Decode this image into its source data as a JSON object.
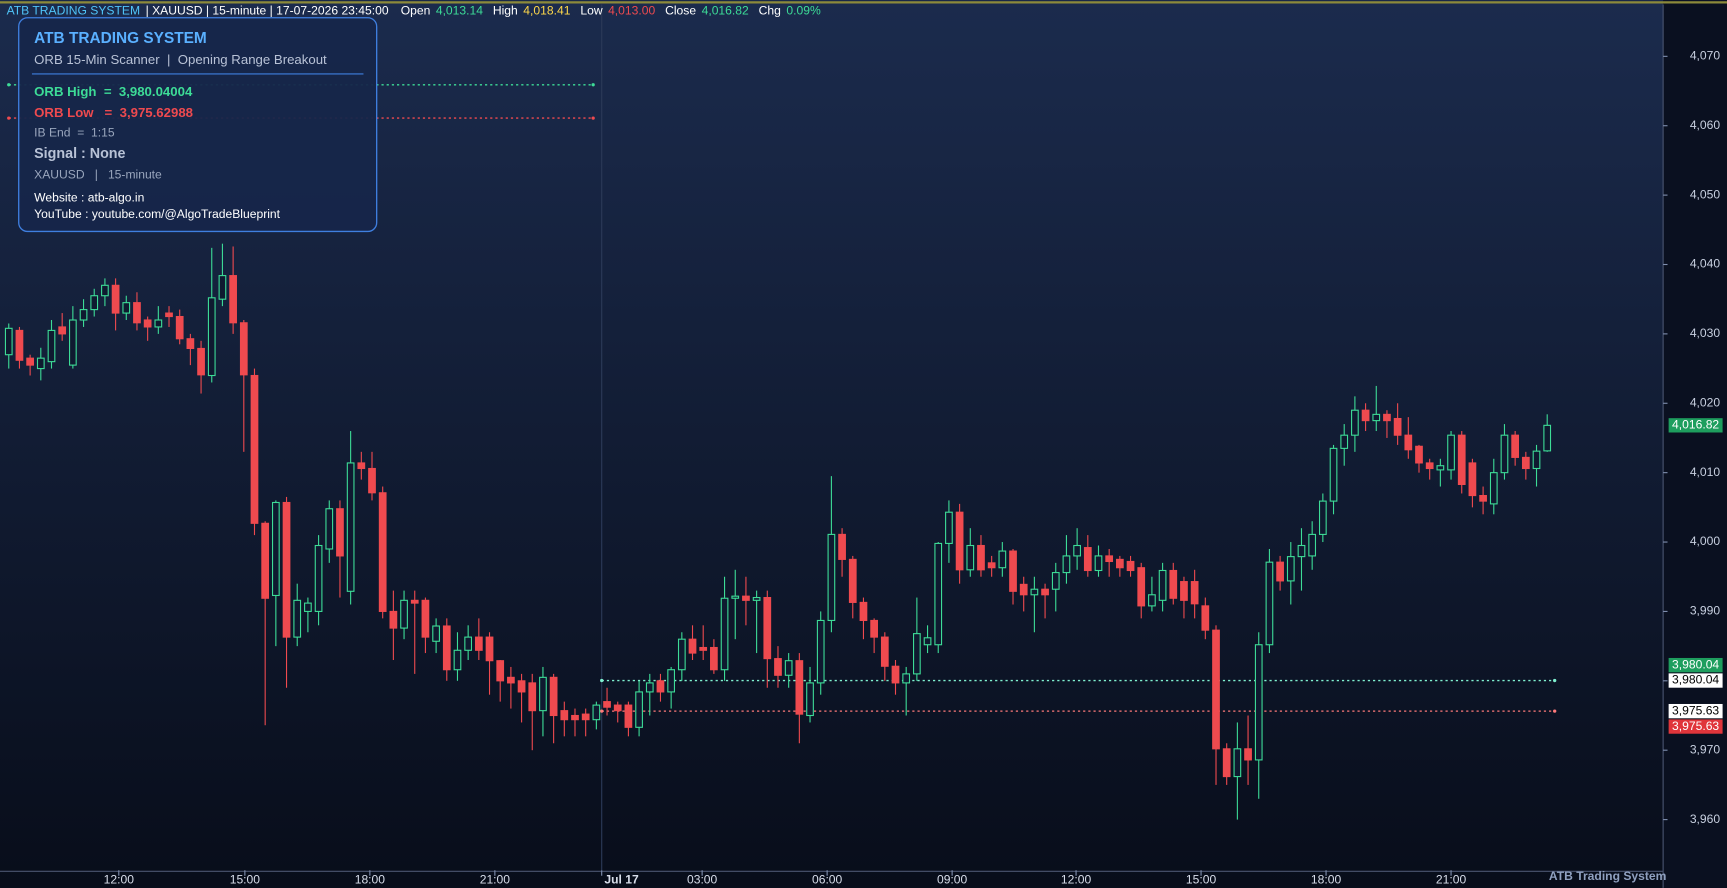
{
  "header": {
    "brand": "ATB TRADING SYSTEM",
    "info": "| XAUUSD | 15-minute | 17-07-2026 23:45:00",
    "stats": [
      {
        "name": "Open",
        "value": "4,013.14"
      },
      {
        "name": "High",
        "value": "4,018.41"
      },
      {
        "name": "Low",
        "value": "4,013.00"
      },
      {
        "name": "Close",
        "value": "4,016.82"
      },
      {
        "name": "Chg",
        "value": "0.09%"
      }
    ]
  },
  "panel": {
    "title": "ATB TRADING SYSTEM",
    "subtitle": "ORB 15-Min Scanner  |  Opening Range Breakout",
    "orb_high": "ORB High  =  3,980.04004",
    "orb_low": "ORB Low   =  3,975.62988",
    "ib_end": "IB End  =  1:15",
    "signal": "Signal : None",
    "symbol": "XAUUSD   |   15-minute",
    "website": "Website : atb-algo.in",
    "youtube": "YouTube : youtube.com/@AlgoTradeBlueprint"
  },
  "watermark": "ATB Trading System",
  "chart_data": {
    "type": "candlestick",
    "up_color": "#3ddc97",
    "down_color": "#ef4a4f",
    "open": [
      4027,
      4030.5,
      4026.5,
      4025,
      4026,
      4031,
      4025.5,
      4032,
      4033.5,
      4035.5,
      4037,
      4033,
      4034.5,
      4032,
      4031,
      4033,
      4032.5,
      4029.3,
      4027.9,
      4024,
      4035,
      4038.4,
      4031.6,
      4024,
      4002.7,
      3992.3,
      4005.7,
      3986.3,
      3990,
      3990,
      3999,
      4004.8,
      3992.9,
      4011.4,
      4010.6,
      4007.1,
      3990,
      3987.6,
      3991.6,
      3991.6,
      3985.7,
      3987.9,
      3981.6,
      3984.4,
      3986.3,
      3986.3,
      3982.9,
      3980.5,
      3980,
      3979.7,
      3975.7,
      3980.5,
      3975.7,
      3975,
      3975.2,
      3974.4,
      3977,
      3976.5,
      3976.5,
      3973.3,
      3978.4,
      3980,
      3978.4,
      3981.6,
      3986,
      3984.8,
      3984.8,
      3981.6,
      3991.9,
      3992.2,
      3991.6,
      3992,
      3983.2,
      3980.8,
      3982.9,
      3975,
      3979.7,
      3988.7,
      4001.1,
      3997.5,
      3991.3,
      3988.7,
      3986.3,
      3982.1,
      3979.7,
      3981,
      3985.2,
      3985.2,
      3999.8,
      4004.3,
      3996,
      3999.5,
      3997,
      3996.3,
      3998.7,
      3993.9,
      3992.4,
      3993.2,
      3993.2,
      3995.6,
      3998,
      3999.2,
      3995.9,
      3998,
      3997.5,
      3997.2,
      3996.3,
      3990.8,
      3991.6,
      3995.9,
      3994.3,
      3994.3,
      3990.8,
      3987.3,
      3970.2,
      3966.2,
      3970.2,
      3968.6,
      3985.2,
      3997.1,
      3994.4,
      3997.9,
      3998,
      4001.1,
      4005.9,
      4013.5,
      4015.4,
      4019,
      4017.5,
      4018.4,
      4017.8,
      4015.4,
      4013.8,
      4011.4,
      4010.4,
      4010.4,
      4015.4,
      4011.4,
      4006.7,
      4005.5,
      4010,
      4015.4,
      4012.2,
      4010.6,
      4013.14
    ],
    "high": [
      4031.5,
      4031,
      4027,
      4028,
      4032,
      4033,
      4034,
      4035,
      4036.5,
      4038,
      4038,
      4035.5,
      4036,
      4032.5,
      4034,
      4034,
      4033.5,
      4030,
      4029,
      4042.4,
      4043,
      4042.6,
      4032,
      4025,
      4003,
      4006,
      4006.5,
      3994,
      3992,
      4001,
      4006,
      4006,
      4016,
      4013,
      4013,
      4008,
      3993,
      3993,
      3993,
      3992,
      3989,
      3989,
      3987,
      3988,
      3989,
      3987,
      3983,
      3982,
      3981,
      3981,
      3982,
      3981,
      3977,
      3976,
      3976,
      3977,
      3979,
      3977,
      3977,
      3980,
      3981,
      3981,
      3982,
      3987,
      3988,
      3988,
      3986,
      3995,
      3996,
      3995,
      3993,
      3993,
      3985,
      3984,
      3984,
      3982,
      3990,
      4009.5,
      4002,
      3998,
      3992,
      3989,
      3987,
      3983,
      3982,
      3992,
      3988,
      4000,
      4006,
      4005.5,
      4002,
      4001,
      3998,
      4000,
      3999,
      3995,
      3995,
      3994,
      3997,
      4001,
      4002,
      4001,
      3999.5,
      3999,
      3998,
      3998,
      3997,
      3995,
      3997,
      3997,
      3995,
      3996,
      3992,
      3988,
      3971,
      3974,
      3975,
      3987,
      3999,
      3998,
      4000,
      4002,
      4003,
      4007,
      4014,
      4017,
      4021,
      4020,
      4022.5,
      4019,
      4020,
      4018,
      4014,
      4012,
      4012,
      4016,
      4016,
      4012,
      4008,
      4012,
      4017,
      4016,
      4013,
      4014,
      4018.41
    ],
    "low": [
      4025,
      4025,
      4024,
      4023.3,
      4025,
      4029,
      4025,
      4031,
      4032.5,
      4034,
      4030.5,
      4032,
      4030.5,
      4029,
      4030,
      4031,
      4028.5,
      4025.5,
      4021.4,
      4023,
      4034,
      4030,
      4013,
      4001,
      3973.6,
      3985,
      3979,
      3985,
      3987,
      3988,
      3997,
      3992,
      3991,
      4009,
      4006,
      3989,
      3983,
      3986,
      3981,
      3984,
      3984,
      3980,
      3980,
      3983,
      3983,
      3978,
      3977,
      3976,
      3974,
      3970,
      3972,
      3971,
      3972,
      3972,
      3972,
      3973,
      3975,
      3974,
      3972,
      3972,
      3975,
      3977,
      3976,
      3980,
      3983,
      3983,
      3981,
      3980,
      3986,
      3988,
      3984,
      3979,
      3979,
      3979,
      3971,
      3974,
      3978,
      3987,
      3995,
      3989,
      3986,
      3984,
      3980,
      3978,
      3975,
      3980,
      3984,
      3984,
      3997,
      3994,
      3995,
      3995,
      3995,
      3995,
      3991,
      3990,
      3987,
      3989,
      3990,
      3994,
      3996,
      3995,
      3995,
      3995,
      3995,
      3995,
      3989,
      3990,
      3990,
      3991,
      3989,
      3989,
      3986,
      3965,
      3965,
      3960,
      3965,
      3963,
      3984,
      3993,
      3991,
      3993,
      3996,
      4000,
      4004,
      4011,
      4013,
      4016,
      4016,
      4015,
      4014,
      4012,
      4010,
      4009,
      4008,
      4009,
      4007,
      4005,
      4004,
      4004,
      4009,
      4011,
      4009,
      4008,
      4013.0
    ],
    "close": [
      4030.8,
      4026.2,
      4025.5,
      4026.5,
      4030.5,
      4030,
      4032,
      4033.5,
      4035.5,
      4037,
      4033,
      4034.5,
      4031.6,
      4031,
      4032,
      4032.5,
      4029.3,
      4027.9,
      4024.1,
      4035.2,
      4038.4,
      4031.6,
      4024.1,
      4002.7,
      3991.9,
      4005.7,
      3986.3,
      3991.6,
      3991.2,
      3999.5,
      4004.8,
      3998,
      4011.4,
      4010.6,
      4007.1,
      3990,
      3987.6,
      3991.6,
      3991.2,
      3986.3,
      3987.9,
      3981.6,
      3984.4,
      3986.3,
      3984.4,
      3982.9,
      3980,
      3979.7,
      3978.4,
      3975.7,
      3980.5,
      3975,
      3974.4,
      3974.4,
      3974.4,
      3976.5,
      3976.2,
      3975.7,
      3973.3,
      3978.4,
      3979.7,
      3978.4,
      3981.6,
      3986,
      3984,
      3984.4,
      3981.6,
      3991.9,
      3992.2,
      3991.6,
      3992,
      3983.2,
      3980.8,
      3982.9,
      3975.2,
      3979.7,
      3988.7,
      4001.1,
      3997.5,
      3991.3,
      3988.7,
      3986.3,
      3982.1,
      3979.7,
      3981,
      3986.8,
      3986.2,
      3999.8,
      4004.3,
      3996,
      3999.5,
      3996,
      3996.3,
      3998.7,
      3992.9,
      3992.4,
      3993.2,
      3992.4,
      3995.6,
      3998,
      3999.5,
      3995.9,
      3998,
      3997.2,
      3996.3,
      3995.9,
      3990.8,
      3992.4,
      3995.9,
      3991.9,
      3991.6,
      3991.1,
      3987.3,
      3970.2,
      3966.2,
      3970.2,
      3968.6,
      3985.2,
      3997.1,
      3994.4,
      3997.9,
      3999.5,
      4001.1,
      4005.9,
      4013.5,
      4015.4,
      4019,
      4017.5,
      4018.4,
      4017.5,
      4015.4,
      4013.3,
      4011.4,
      4010.6,
      4011,
      4015.4,
      4008.3,
      4006.7,
      4005.9,
      4010,
      4015.4,
      4012.2,
      4010.6,
      4013.1,
      4016.82
    ],
    "xlim": [
      -0.82,
      154.85
    ],
    "xticks": [
      {
        "value": 10.3,
        "label": "12:00"
      },
      {
        "value": 22.1,
        "label": "15:00"
      },
      {
        "value": 33.8,
        "label": "18:00"
      },
      {
        "value": 45.5,
        "label": "21:00"
      },
      {
        "value": 55.5,
        "label": "Jul 17"
      },
      {
        "value": 64.9,
        "label": "03:00"
      },
      {
        "value": 76.6,
        "label": "06:00"
      },
      {
        "value": 88.3,
        "label": "09:00"
      },
      {
        "value": 99.9,
        "label": "12:00"
      },
      {
        "value": 111.6,
        "label": "15:00"
      },
      {
        "value": 123.3,
        "label": "18:00"
      },
      {
        "value": 135.0,
        "label": "21:00"
      }
    ],
    "ylim": [
      3952.7,
      4078.1
    ],
    "yticks": [
      {
        "value": 3960,
        "label": "3,960"
      },
      {
        "value": 3970,
        "label": "3,970"
      },
      {
        "value": 3980,
        "label": "3,980"
      },
      {
        "value": 3990,
        "label": "3,990"
      },
      {
        "value": 4000,
        "label": "4,000"
      },
      {
        "value": 4010,
        "label": "4,010"
      },
      {
        "value": 4020,
        "label": "4,020"
      },
      {
        "value": 4030,
        "label": "4,030"
      },
      {
        "value": 4040,
        "label": "4,040"
      },
      {
        "value": 4050,
        "label": "4,050"
      },
      {
        "value": 4060,
        "label": "4,060"
      },
      {
        "value": 4070,
        "label": "4,070"
      }
    ],
    "levels": [
      {
        "value": 3980.04004,
        "color": "#7ff0d0",
        "start": 55.5,
        "end": 144.7
      },
      {
        "value": 3975.62988,
        "color": "#ff7a7a",
        "start": 55.5,
        "end": 144.7
      },
      {
        "value": 4065.9,
        "color": "#3ddc97",
        "start": 0,
        "end": 54.7
      },
      {
        "value": 4061.1,
        "color": "#ef4a4f",
        "start": 0,
        "end": 54.7
      }
    ],
    "price_labels": [
      {
        "value": 4016.82,
        "label": "4,016.82",
        "color": "#1e9e5e"
      },
      {
        "value": 3980.04,
        "label": "3,980.04",
        "color": "#ffffff"
      },
      {
        "value": 3975.63,
        "label": "3,975.63",
        "color": "#ffffff"
      },
      {
        "value": 3980.04,
        "label": "3,980.04",
        "color": "#1e9e5e"
      },
      {
        "value": 3975.63,
        "label": "3,975.63",
        "color": "#e0353b"
      }
    ]
  }
}
